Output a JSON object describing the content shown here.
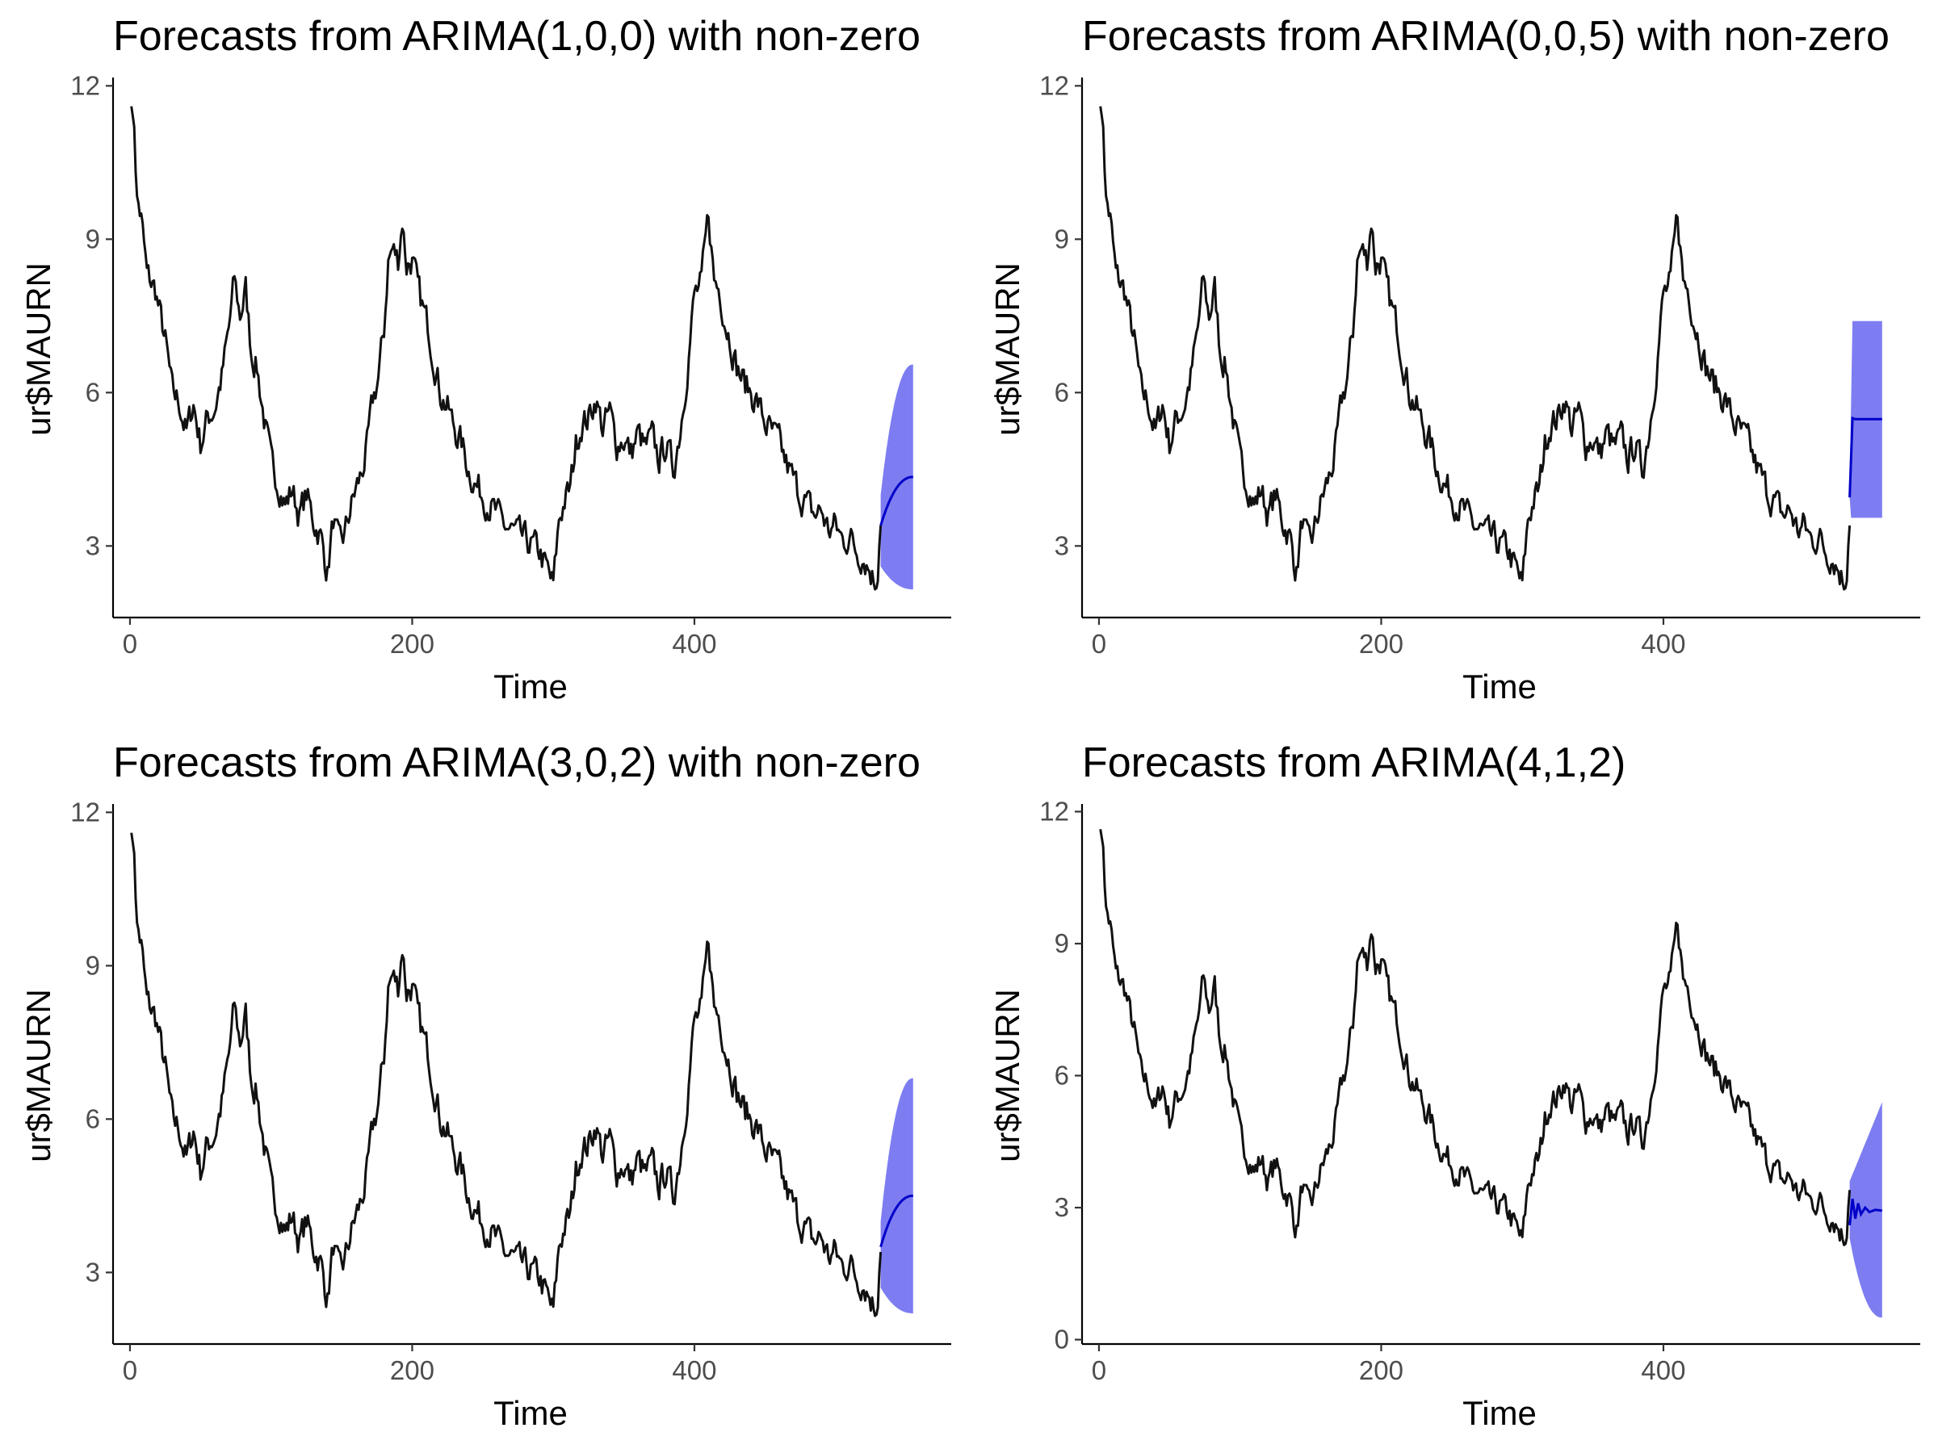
{
  "chart_data": [
    {
      "type": "line",
      "title": "Forecasts from ARIMA(1,0,0) with non-zero",
      "xlabel": "Time",
      "ylabel": "ur$MAURN",
      "xlim": [
        -12,
        582
      ],
      "ylim": [
        1.6,
        12.1
      ],
      "x_ticks": [
        0,
        200,
        400
      ],
      "y_ticks": [
        3,
        6,
        9,
        12
      ],
      "x_tick_labels": [
        "0",
        "200",
        "400"
      ],
      "y_tick_labels": [
        "3",
        "6",
        "9",
        "12"
      ],
      "grid": false,
      "history_ref": "shared_history",
      "forecast": {
        "x_start": 532,
        "x_end": 555,
        "mean_start": 3.4,
        "mean_end": 4.35,
        "mean_shape": "concave",
        "lower_start": 2.6,
        "lower_end": 2.15,
        "upper_start": 4.0,
        "upper_end": 6.55,
        "upper_shape": "concave"
      }
    },
    {
      "type": "line",
      "title": "Forecasts from ARIMA(0,0,5) with non-zero",
      "xlabel": "Time",
      "ylabel": "ur$MAURN",
      "xlim": [
        -12,
        582
      ],
      "ylim": [
        1.6,
        12.1
      ],
      "x_ticks": [
        0,
        200,
        400
      ],
      "y_ticks": [
        3,
        6,
        9,
        12
      ],
      "x_tick_labels": [
        "0",
        "200",
        "400"
      ],
      "y_tick_labels": [
        "3",
        "6",
        "9",
        "12"
      ],
      "grid": false,
      "history_ref": "shared_history",
      "forecast": {
        "x_start": 532,
        "x_end": 555,
        "mean_points": [
          [
            532,
            3.95
          ],
          [
            534,
            5.5
          ],
          [
            536,
            5.48
          ],
          [
            555,
            5.48
          ]
        ],
        "lower_points": [
          [
            532,
            3.95
          ],
          [
            533,
            3.55
          ],
          [
            555,
            3.55
          ]
        ],
        "upper_points": [
          [
            532,
            4.2
          ],
          [
            534,
            7.4
          ],
          [
            555,
            7.4
          ]
        ]
      }
    },
    {
      "type": "line",
      "title": "Forecasts from ARIMA(3,0,2) with non-zero",
      "xlabel": "Time",
      "ylabel": "ur$MAURN",
      "xlim": [
        -12,
        582
      ],
      "ylim": [
        1.6,
        12.1
      ],
      "x_ticks": [
        0,
        200,
        400
      ],
      "y_ticks": [
        3,
        6,
        9,
        12
      ],
      "x_tick_labels": [
        "0",
        "200",
        "400"
      ],
      "y_tick_labels": [
        "3",
        "6",
        "9",
        "12"
      ],
      "grid": false,
      "history_ref": "shared_history",
      "forecast": {
        "x_start": 532,
        "x_end": 555,
        "mean_start": 3.5,
        "mean_end": 4.5,
        "mean_shape": "concave",
        "lower_start": 2.7,
        "lower_end": 2.2,
        "upper_start": 4.0,
        "upper_end": 6.8,
        "upper_shape": "concave"
      }
    },
    {
      "type": "line",
      "title": "Forecasts from ARIMA(4,1,2)",
      "xlabel": "Time",
      "ylabel": "ur$MAURN",
      "xlim": [
        -12,
        582
      ],
      "ylim": [
        -0.1,
        12.1
      ],
      "x_ticks": [
        0,
        200,
        400
      ],
      "y_ticks": [
        0,
        3,
        6,
        9,
        12
      ],
      "x_tick_labels": [
        "0",
        "200",
        "400"
      ],
      "y_tick_labels": [
        "0",
        "3",
        "6",
        "9",
        "12"
      ],
      "grid": false,
      "history_ref": "shared_history",
      "forecast": {
        "x_start": 532,
        "x_end": 555,
        "mean_points": [
          [
            532,
            2.6
          ],
          [
            534,
            3.2
          ],
          [
            536,
            2.75
          ],
          [
            538,
            3.1
          ],
          [
            540,
            2.85
          ],
          [
            543,
            3.0
          ],
          [
            546,
            2.9
          ],
          [
            550,
            2.95
          ],
          [
            555,
            2.93
          ]
        ],
        "lower_start": 2.3,
        "lower_end": 0.5,
        "upper_start": 3.6,
        "upper_end": 5.4,
        "upper_shape": "linear"
      }
    }
  ],
  "shared_history": {
    "x_start": 1,
    "x_end": 532,
    "anchors": [
      [
        1,
        11.6
      ],
      [
        3,
        11.2
      ],
      [
        5,
        9.8
      ],
      [
        8,
        9.4
      ],
      [
        12,
        8.3
      ],
      [
        18,
        8.0
      ],
      [
        25,
        7.0
      ],
      [
        30,
        6.0
      ],
      [
        35,
        5.8
      ],
      [
        40,
        5.2
      ],
      [
        45,
        5.8
      ],
      [
        50,
        5.0
      ],
      [
        55,
        5.5
      ],
      [
        60,
        5.7
      ],
      [
        65,
        6.3
      ],
      [
        70,
        7.2
      ],
      [
        74,
        8.2
      ],
      [
        78,
        7.5
      ],
      [
        82,
        8.0
      ],
      [
        86,
        6.8
      ],
      [
        90,
        6.5
      ],
      [
        95,
        5.5
      ],
      [
        100,
        4.6
      ],
      [
        106,
        4.2
      ],
      [
        110,
        3.8
      ],
      [
        115,
        4.1
      ],
      [
        120,
        3.6
      ],
      [
        125,
        4.0
      ],
      [
        130,
        3.5
      ],
      [
        135,
        3.2
      ],
      [
        140,
        2.5
      ],
      [
        144,
        3.5
      ],
      [
        148,
        3.0
      ],
      [
        152,
        3.2
      ],
      [
        156,
        3.7
      ],
      [
        160,
        4.1
      ],
      [
        164,
        4.4
      ],
      [
        168,
        4.9
      ],
      [
        172,
        5.8
      ],
      [
        176,
        6.3
      ],
      [
        180,
        7.2
      ],
      [
        183,
        8.6
      ],
      [
        186,
        8.8
      ],
      [
        190,
        8.6
      ],
      [
        193,
        9.4
      ],
      [
        196,
        8.5
      ],
      [
        200,
        8.6
      ],
      [
        204,
        8.0
      ],
      [
        208,
        7.6
      ],
      [
        212,
        7.2
      ],
      [
        216,
        6.6
      ],
      [
        220,
        6.0
      ],
      [
        225,
        5.7
      ],
      [
        230,
        5.3
      ],
      [
        235,
        5.0
      ],
      [
        240,
        4.5
      ],
      [
        245,
        4.2
      ],
      [
        250,
        4.0
      ],
      [
        255,
        3.8
      ],
      [
        260,
        3.6
      ],
      [
        265,
        3.4
      ],
      [
        270,
        3.3
      ],
      [
        275,
        3.2
      ],
      [
        280,
        3.1
      ],
      [
        285,
        3.0
      ],
      [
        290,
        2.9
      ],
      [
        296,
        2.5
      ],
      [
        300,
        2.2
      ],
      [
        304,
        3.5
      ],
      [
        308,
        3.9
      ],
      [
        312,
        4.1
      ],
      [
        316,
        5.0
      ],
      [
        320,
        5.4
      ],
      [
        325,
        5.5
      ],
      [
        330,
        5.9
      ],
      [
        335,
        5.3
      ],
      [
        340,
        5.6
      ],
      [
        345,
        5.0
      ],
      [
        350,
        5.1
      ],
      [
        355,
        4.8
      ],
      [
        360,
        5.2
      ],
      [
        365,
        4.9
      ],
      [
        370,
        5.1
      ],
      [
        375,
        4.7
      ],
      [
        380,
        5.0
      ],
      [
        385,
        4.5
      ],
      [
        390,
        5.3
      ],
      [
        395,
        6.5
      ],
      [
        400,
        7.9
      ],
      [
        405,
        8.1
      ],
      [
        410,
        9.5
      ],
      [
        414,
        8.2
      ],
      [
        418,
        8.0
      ],
      [
        422,
        7.4
      ],
      [
        426,
        7.0
      ],
      [
        430,
        6.5
      ],
      [
        435,
        6.2
      ],
      [
        440,
        6.0
      ],
      [
        445,
        5.8
      ],
      [
        450,
        5.4
      ],
      [
        455,
        5.2
      ],
      [
        460,
        5.0
      ],
      [
        465,
        4.6
      ],
      [
        470,
        4.3
      ],
      [
        475,
        4.0
      ],
      [
        480,
        3.8
      ],
      [
        485,
        3.6
      ],
      [
        490,
        3.7
      ],
      [
        495,
        3.3
      ],
      [
        500,
        3.4
      ],
      [
        505,
        3.1
      ],
      [
        510,
        3.2
      ],
      [
        515,
        2.9
      ],
      [
        520,
        2.8
      ],
      [
        525,
        2.5
      ],
      [
        528,
        2.3
      ],
      [
        530,
        2.6
      ],
      [
        532,
        3.4
      ]
    ]
  },
  "colors": {
    "history_line": "#111111",
    "forecast_mean": "#0000c8",
    "interval_fill": "#6666ee"
  }
}
